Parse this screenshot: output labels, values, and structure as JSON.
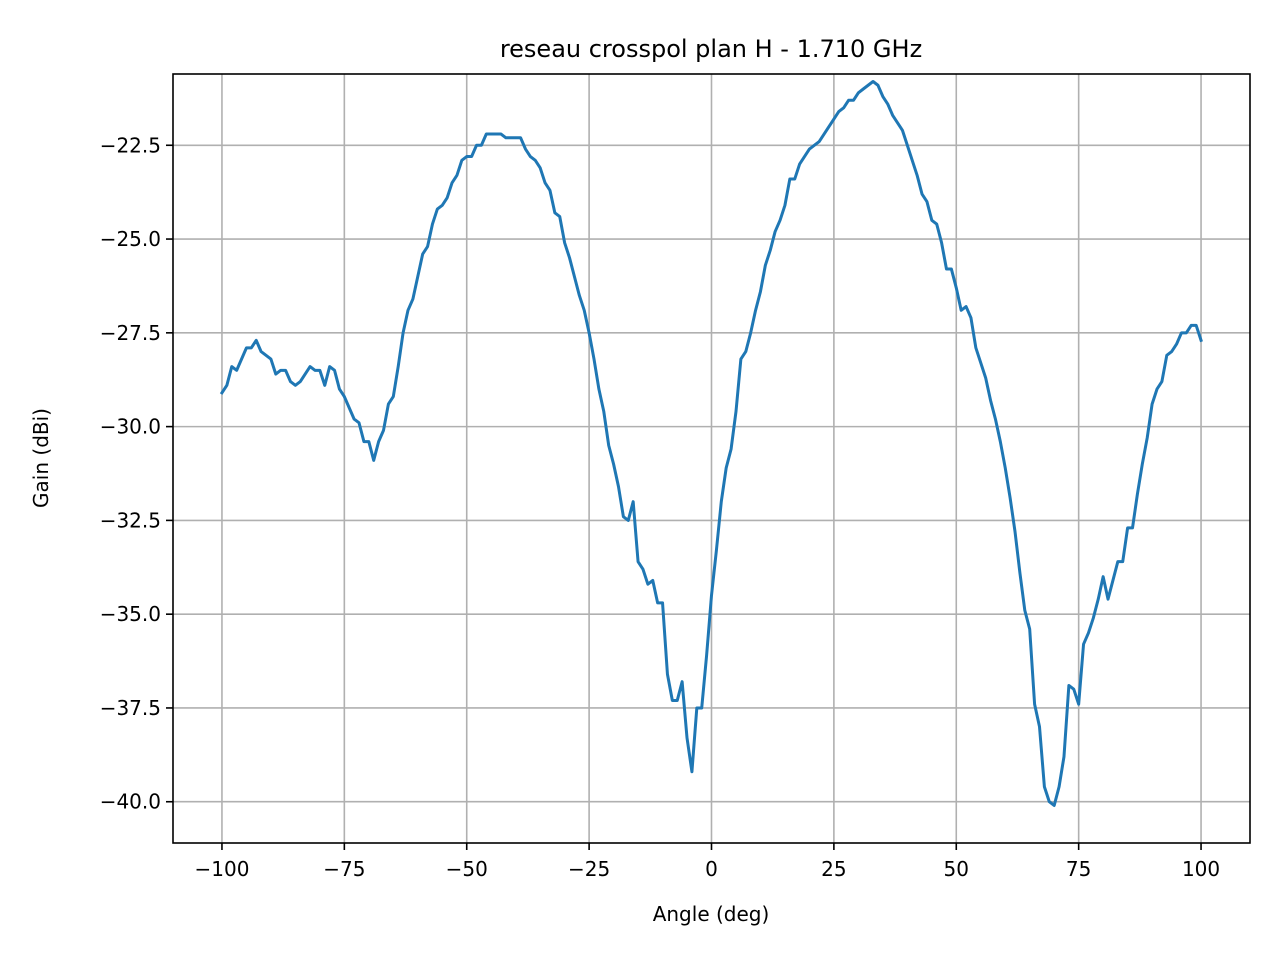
{
  "chart_data": {
    "type": "line",
    "title": "reseau crosspol plan H - 1.710 GHz",
    "xlabel": "Angle (deg)",
    "ylabel": "Gain (dBi)",
    "xlim": [
      -110,
      110
    ],
    "ylim": [
      -41.1,
      -20.6
    ],
    "grid": true,
    "legend": "none",
    "x_ticks": [
      {
        "value": -100,
        "label": "−100"
      },
      {
        "value": -75,
        "label": "−75"
      },
      {
        "value": -50,
        "label": "−50"
      },
      {
        "value": -25,
        "label": "−25"
      },
      {
        "value": 0,
        "label": "0"
      },
      {
        "value": 25,
        "label": "25"
      },
      {
        "value": 50,
        "label": "50"
      },
      {
        "value": 75,
        "label": "75"
      },
      {
        "value": 100,
        "label": "100"
      }
    ],
    "y_ticks": [
      {
        "value": -22.5,
        "label": "−22.5"
      },
      {
        "value": -25.0,
        "label": "−25.0"
      },
      {
        "value": -27.5,
        "label": "−27.5"
      },
      {
        "value": -30.0,
        "label": "−30.0"
      },
      {
        "value": -32.5,
        "label": "−32.5"
      },
      {
        "value": -35.0,
        "label": "−35.0"
      },
      {
        "value": -37.5,
        "label": "−37.5"
      },
      {
        "value": -40.0,
        "label": "−40.0"
      }
    ],
    "series": [
      {
        "color": "#1f77b4",
        "x": [
          -100,
          -99,
          -98,
          -97,
          -96,
          -95,
          -94,
          -93,
          -92,
          -91,
          -90,
          -89,
          -88,
          -87,
          -86,
          -85,
          -84,
          -83,
          -82,
          -81,
          -80,
          -79,
          -78,
          -77,
          -76,
          -75,
          -74,
          -73,
          -72,
          -71,
          -70,
          -69,
          -68,
          -67,
          -66,
          -65,
          -64,
          -63,
          -62,
          -61,
          -60,
          -59,
          -58,
          -57,
          -56,
          -55,
          -54,
          -53,
          -52,
          -51,
          -50,
          -49,
          -48,
          -47,
          -46,
          -45,
          -44,
          -43,
          -42,
          -41,
          -40,
          -39,
          -38,
          -37,
          -36,
          -35,
          -34,
          -33,
          -32,
          -31,
          -30,
          -29,
          -28,
          -27,
          -26,
          -25,
          -24,
          -23,
          -22,
          -21,
          -20,
          -19,
          -18,
          -17,
          -16,
          -15,
          -14,
          -13,
          -12,
          -11,
          -10,
          -9,
          -8,
          -7,
          -6,
          -5,
          -4,
          -3,
          -2,
          -1,
          0,
          1,
          2,
          3,
          4,
          5,
          6,
          7,
          8,
          9,
          10,
          11,
          12,
          13,
          14,
          15,
          16,
          17,
          18,
          19,
          20,
          21,
          22,
          23,
          24,
          25,
          26,
          27,
          28,
          29,
          30,
          31,
          32,
          33,
          34,
          35,
          36,
          37,
          38,
          39,
          40,
          41,
          42,
          43,
          44,
          45,
          46,
          47,
          48,
          49,
          50,
          51,
          52,
          53,
          54,
          55,
          56,
          57,
          58,
          59,
          60,
          61,
          62,
          63,
          64,
          65,
          66,
          67,
          68,
          69,
          70,
          71,
          72,
          73,
          74,
          75,
          76,
          77,
          78,
          79,
          80,
          81,
          82,
          83,
          84,
          85,
          86,
          87,
          88,
          89,
          90,
          91,
          92,
          93,
          94,
          95,
          96,
          97,
          98,
          99,
          100
        ],
        "y": [
          -29.1,
          -28.9,
          -28.4,
          -28.5,
          -28.2,
          -27.9,
          -27.9,
          -27.7,
          -28.0,
          -28.1,
          -28.2,
          -28.6,
          -28.5,
          -28.5,
          -28.8,
          -28.9,
          -28.8,
          -28.6,
          -28.4,
          -28.5,
          -28.5,
          -28.9,
          -28.4,
          -28.5,
          -29.0,
          -29.2,
          -29.5,
          -29.8,
          -29.9,
          -30.4,
          -30.4,
          -30.9,
          -30.4,
          -30.1,
          -29.4,
          -29.2,
          -28.4,
          -27.5,
          -26.9,
          -26.6,
          -26.0,
          -25.4,
          -25.2,
          -24.6,
          -24.2,
          -24.1,
          -23.9,
          -23.5,
          -23.3,
          -22.9,
          -22.8,
          -22.8,
          -22.5,
          -22.5,
          -22.2,
          -22.2,
          -22.2,
          -22.2,
          -22.3,
          -22.3,
          -22.3,
          -22.3,
          -22.6,
          -22.8,
          -22.9,
          -23.1,
          -23.5,
          -23.7,
          -24.3,
          -24.4,
          -25.1,
          -25.5,
          -26.0,
          -26.5,
          -26.9,
          -27.5,
          -28.2,
          -29.0,
          -29.6,
          -30.5,
          -31.0,
          -31.6,
          -32.4,
          -32.5,
          -32.0,
          -33.6,
          -33.8,
          -34.2,
          -34.1,
          -34.7,
          -34.7,
          -36.6,
          -37.3,
          -37.3,
          -36.8,
          -38.3,
          -39.2,
          -37.5,
          -37.5,
          -36.1,
          -34.5,
          -33.3,
          -32.0,
          -31.1,
          -30.6,
          -29.6,
          -28.2,
          -28.0,
          -27.5,
          -26.9,
          -26.4,
          -25.7,
          -25.3,
          -24.8,
          -24.5,
          -24.1,
          -23.4,
          -23.4,
          -23.0,
          -22.8,
          -22.6,
          -22.5,
          -22.4,
          -22.2,
          -22.0,
          -21.8,
          -21.6,
          -21.5,
          -21.3,
          -21.3,
          -21.1,
          -21.0,
          -20.9,
          -20.8,
          -20.9,
          -21.2,
          -21.4,
          -21.7,
          -21.9,
          -22.1,
          -22.5,
          -22.9,
          -23.3,
          -23.8,
          -24.0,
          -24.5,
          -24.6,
          -25.1,
          -25.8,
          -25.8,
          -26.3,
          -26.9,
          -26.8,
          -27.1,
          -27.9,
          -28.3,
          -28.7,
          -29.3,
          -29.8,
          -30.4,
          -31.1,
          -31.9,
          -32.8,
          -33.9,
          -34.9,
          -35.4,
          -37.4,
          -38.0,
          -39.6,
          -40.0,
          -40.1,
          -39.6,
          -38.8,
          -36.9,
          -37.0,
          -37.4,
          -35.8,
          -35.5,
          -35.1,
          -34.6,
          -34.0,
          -34.6,
          -34.1,
          -33.6,
          -33.6,
          -32.7,
          -32.7,
          -31.8,
          -31.0,
          -30.3,
          -29.4,
          -29.0,
          -28.8,
          -28.1,
          -28.0,
          -27.8,
          -27.5,
          -27.5,
          -27.3,
          -27.3,
          -27.7
        ]
      }
    ]
  }
}
